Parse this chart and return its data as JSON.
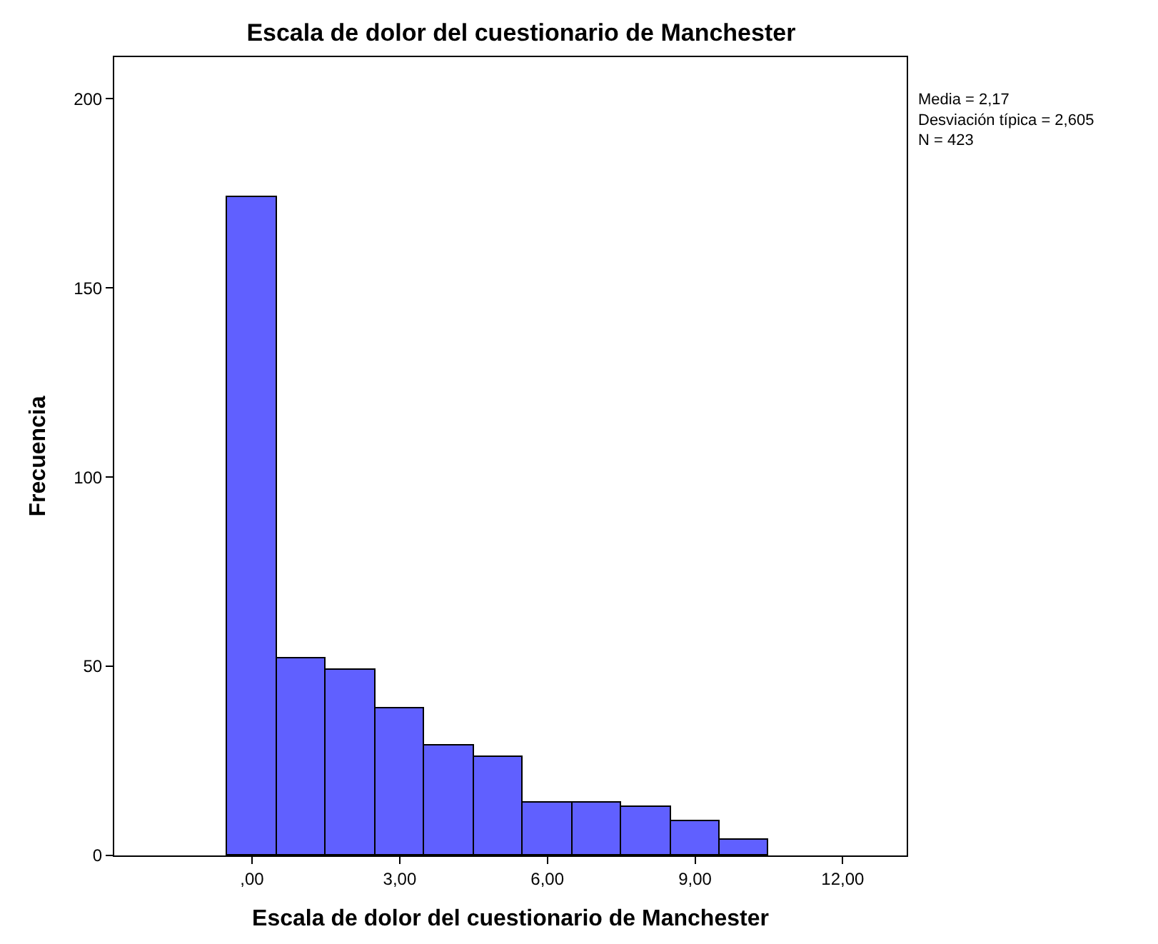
{
  "chart_data": {
    "type": "histogram",
    "title": "Escala de dolor del cuestionario de Manchester",
    "xlabel": "Escala de dolor del cuestionario de Manchester",
    "ylabel": "Frecuencia",
    "bins": [
      -0.5,
      0.5,
      1.5,
      2.5,
      3.5,
      4.5,
      5.5,
      6.5,
      7.5,
      8.5,
      9.5,
      10.5
    ],
    "values": [
      174,
      52,
      49,
      39,
      29,
      26,
      14,
      14,
      13,
      9,
      4
    ],
    "color": "#6060ff",
    "xlim": [
      -2.8,
      13.3
    ],
    "xticks": [
      {
        "value": 0,
        "label": ",00"
      },
      {
        "value": 3,
        "label": "3,00"
      },
      {
        "value": 6,
        "label": "6,00"
      },
      {
        "value": 9,
        "label": "9,00"
      },
      {
        "value": 12,
        "label": "12,00"
      }
    ],
    "ylim": [
      0,
      211
    ],
    "yticks": [
      0,
      50,
      100,
      150,
      200
    ],
    "annotations": [
      "Media = 2,17\nDesviación típica = 2,605\nN = 423"
    ]
  }
}
